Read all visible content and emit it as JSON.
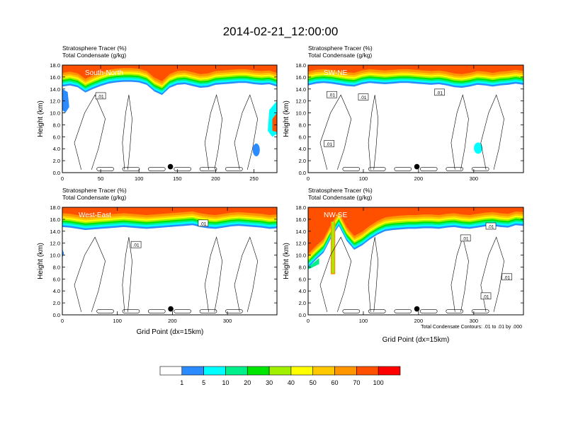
{
  "figure": {
    "title": "2014-02-21_12:00:00",
    "footnote": "Total Condensate Contours: .01 to .01 by .000"
  },
  "colorbar": {
    "labels": [
      "1",
      "5",
      "10",
      "20",
      "30",
      "40",
      "50",
      "60",
      "70",
      "100"
    ],
    "colors": [
      "#ffffff",
      "#2b8cff",
      "#00ffff",
      "#00f08c",
      "#00e600",
      "#a0f000",
      "#ffff00",
      "#ffc800",
      "#ff9600",
      "#ff5000",
      "#ff0000"
    ]
  },
  "chart_data": [
    {
      "type": "heatmap",
      "panel": "South-North",
      "label": "South-North",
      "subtitle_left_1": "Stratosphere Tracer   (%)",
      "subtitle_left_2": "Total Condensate   (g/kg)",
      "ylabel": "Height (km)",
      "xlabel": "",
      "xlim": [
        0,
        280
      ],
      "ylim": [
        0,
        18
      ],
      "xticks": [
        0,
        50,
        100,
        150,
        200,
        250
      ],
      "yticks": [
        0,
        2,
        4,
        6,
        8,
        10,
        12,
        14,
        16,
        18
      ],
      "ytick_labels": [
        "0.0",
        "2.0",
        "4.0",
        "6.0",
        "8.0",
        "10.0",
        "12.0",
        "14.0",
        "16.0",
        "18.0"
      ],
      "tropopause_km": [
        15.0,
        15.2,
        14.9,
        14.0,
        14.6,
        15.1,
        15.5,
        15.7,
        15.8,
        15.8,
        15.7,
        15.3,
        14.2,
        13.6,
        14.8,
        15.3,
        15.4,
        15.1,
        14.8,
        14.9,
        15.3,
        15.4,
        15.5,
        15.6,
        15.6,
        15.4,
        15.3,
        15.4,
        15.0
      ],
      "marker_x": 141,
      "contour_labels": [
        {
          "x": 50,
          "y": 12.8,
          "text": ".01"
        }
      ],
      "features": [
        "intrusion left edge 12-14 km",
        "intrusion right edge 6-11 km"
      ]
    },
    {
      "type": "heatmap",
      "panel": "SW-NE",
      "label": "SW-NE",
      "subtitle_left_1": "Stratosphere Tracer   (%)",
      "subtitle_left_2": "Total Condensate   (g/kg)",
      "ylabel": "Height (km)",
      "xlabel": "",
      "xlim": [
        0,
        390
      ],
      "ylim": [
        0,
        18
      ],
      "xticks": [
        0,
        100,
        200,
        300
      ],
      "yticks": [
        0,
        2,
        4,
        6,
        8,
        10,
        12,
        14,
        16,
        18
      ],
      "ytick_labels": [
        "0.0",
        "2.0",
        "4.0",
        "6.0",
        "8.0",
        "10.0",
        "12.0",
        "14.0",
        "16.0",
        "18.0"
      ],
      "tropopause_km": [
        15.2,
        15.5,
        15.6,
        15.5,
        15.3,
        15.1,
        15.0,
        15.4,
        15.6,
        15.5,
        15.4,
        15.5,
        15.6,
        15.6,
        15.5,
        15.4,
        15.3,
        15.4,
        15.2,
        14.9,
        14.8,
        15.0,
        15.3,
        15.2,
        15.0,
        15.2,
        15.3,
        15.5,
        15.3
      ],
      "marker_x": 197,
      "contour_labels": [
        {
          "x": 43,
          "y": 13.0,
          "text": ".01"
        },
        {
          "x": 100,
          "y": 12.6,
          "text": ".01"
        },
        {
          "x": 238,
          "y": 13.4,
          "text": ".01"
        },
        {
          "x": 38,
          "y": 4.8,
          "text": ".01"
        }
      ],
      "features": []
    },
    {
      "type": "heatmap",
      "panel": "West-East",
      "label": "West-East",
      "subtitle_left_1": "Stratosphere Tracer   (%)",
      "subtitle_left_2": "Total Condensate   (g/kg)",
      "ylabel": "Height (km)",
      "xlabel": "Grid Point (dx=15km)",
      "xlim": [
        0,
        390
      ],
      "ylim": [
        0,
        18
      ],
      "xticks": [
        0,
        100,
        200,
        300
      ],
      "yticks": [
        0,
        2,
        4,
        6,
        8,
        10,
        12,
        14,
        16,
        18
      ],
      "ytick_labels": [
        "0.0",
        "2.0",
        "4.0",
        "6.0",
        "8.0",
        "10.0",
        "12.0",
        "14.0",
        "16.0",
        "18.0"
      ],
      "tropopause_km": [
        15.3,
        15.2,
        15.0,
        14.8,
        14.9,
        15.0,
        15.1,
        15.2,
        15.3,
        15.2,
        15.1,
        15.0,
        15.1,
        15.2,
        15.3,
        15.4,
        15.5,
        15.6,
        15.3,
        15.1,
        15.0,
        15.2,
        15.4,
        15.5,
        15.4,
        15.3,
        15.2,
        15.0,
        15.1
      ],
      "marker_x": 197,
      "contour_labels": [
        {
          "x": 134,
          "y": 11.7,
          "text": ".01"
        },
        {
          "x": 256,
          "y": 15.3,
          "text": ".01"
        }
      ],
      "features": []
    },
    {
      "type": "heatmap",
      "panel": "NW-SE",
      "label": "NW-SE",
      "subtitle_left_1": "Stratosphere Tracer   (%)",
      "subtitle_left_2": "Total Condensate   (g/kg)",
      "ylabel": "Height (km)",
      "xlabel": "Grid Point (dx=15km)",
      "xlim": [
        0,
        390
      ],
      "ylim": [
        0,
        18
      ],
      "xticks": [
        0,
        100,
        200,
        300
      ],
      "yticks": [
        0,
        2,
        4,
        6,
        8,
        10,
        12,
        14,
        16,
        18
      ],
      "ytick_labels": [
        "0.0",
        "2.0",
        "4.0",
        "6.0",
        "8.0",
        "10.0",
        "12.0",
        "14.0",
        "16.0",
        "18.0"
      ],
      "tropopause_km": [
        8.5,
        9.8,
        11.0,
        13.5,
        15.5,
        13.0,
        11.5,
        12.2,
        13.2,
        14.0,
        14.6,
        14.8,
        14.9,
        15.0,
        15.0,
        15.1,
        15.1,
        15.0,
        15.2,
        15.3,
        15.1,
        15.0,
        15.2,
        15.4,
        15.5,
        15.3,
        15.2,
        15.6,
        15.5
      ],
      "marker_x": 197,
      "contour_labels": [
        {
          "x": 331,
          "y": 14.8,
          "text": ".01"
        },
        {
          "x": 285,
          "y": 12.8,
          "text": ".01"
        },
        {
          "x": 360,
          "y": 6.3,
          "text": ".01"
        },
        {
          "x": 322,
          "y": 3.1,
          "text": ".01"
        }
      ],
      "features": [
        "narrow vertical intrusion near x=45 down to 6.5 km"
      ]
    }
  ]
}
